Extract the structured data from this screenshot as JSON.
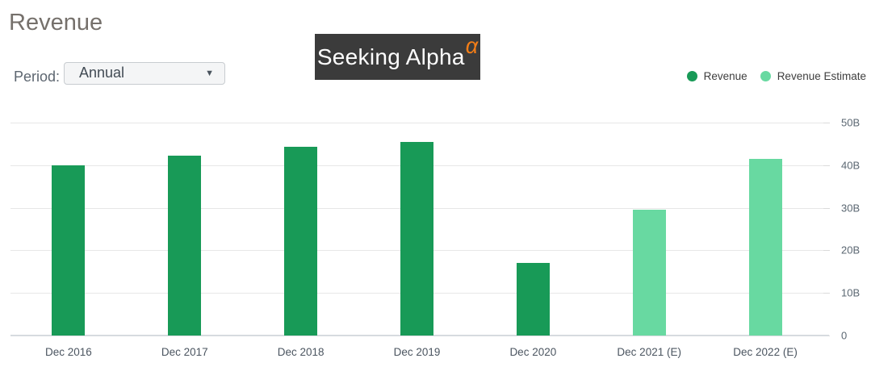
{
  "header": {
    "title": "Revenue"
  },
  "period": {
    "label": "Period:",
    "value": "Annual",
    "caret_icon": "▼"
  },
  "logo": {
    "text": "Seeking Alpha",
    "alpha": "α",
    "background": "#3b3b3b",
    "alpha_color": "#f47e17"
  },
  "legend": {
    "items": [
      {
        "label": "Revenue",
        "color": "#189a57"
      },
      {
        "label": "Revenue Estimate",
        "color": "#68d9a1"
      }
    ]
  },
  "chart_data": {
    "type": "bar",
    "title": "Revenue",
    "categories": [
      "Dec 2016",
      "Dec 2017",
      "Dec 2018",
      "Dec 2019",
      "Dec 2020",
      "Dec 2021 (E)",
      "Dec 2022 (E)"
    ],
    "series": [
      {
        "name": "Revenue",
        "color": "#189a57",
        "values": [
          40.0,
          42.2,
          44.3,
          45.5,
          17.0,
          null,
          null
        ]
      },
      {
        "name": "Revenue Estimate",
        "color": "#68d9a1",
        "values": [
          null,
          null,
          null,
          null,
          null,
          29.6,
          41.5
        ]
      }
    ],
    "unit": "B",
    "xlabel": "",
    "ylabel": "",
    "ylim": [
      0,
      50
    ],
    "ytick_step": 10,
    "ytick_labels": [
      "0",
      "10B",
      "20B",
      "30B",
      "40B",
      "50B"
    ],
    "grid": true,
    "legend_position": "top-right"
  },
  "chart_colors": {
    "gridline": "#e7e7e7",
    "axis_line": "#d6dbdf",
    "tick": "#dadada",
    "ylabel_text": "#5b6772",
    "xlabel_text": "#4b5560"
  }
}
